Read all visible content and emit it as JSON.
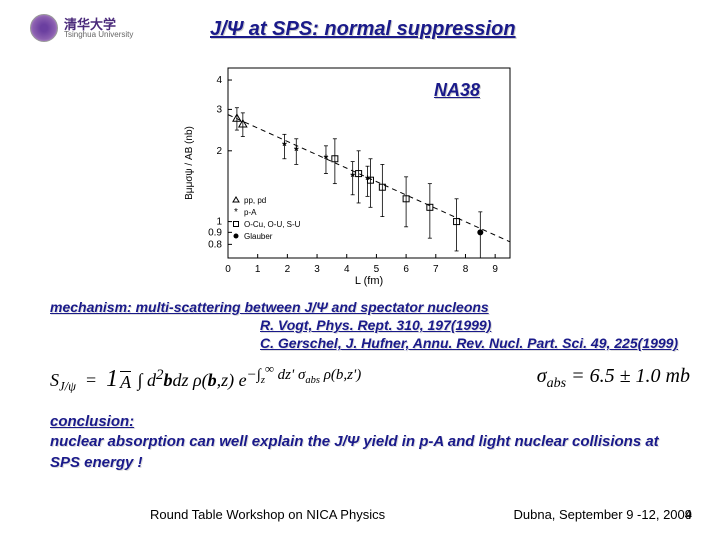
{
  "logo": {
    "cn": "清华大学",
    "en": "Tsinghua University"
  },
  "title": "J/Ψ at SPS:  normal suppression",
  "chart": {
    "label": "NA38",
    "type": "scatter",
    "xlabel": "L (fm)",
    "ylabel": "Bμμσψ / AB (nb)",
    "xlim": [
      0,
      9.5
    ],
    "ylim_log": [
      0.7,
      4.5
    ],
    "xticks": [
      0,
      1,
      2,
      3,
      4,
      5,
      6,
      7,
      8,
      9
    ],
    "yticks": [
      0.8,
      0.9,
      1,
      2,
      3,
      4
    ],
    "yticks_labels": [
      "0.8",
      "0.9",
      "1",
      "2",
      "3",
      "4"
    ],
    "grid_dashed_line": {
      "x": [
        0,
        9.5
      ],
      "y": [
        2.85,
        0.82
      ]
    },
    "legend": [
      {
        "symbol": "triangle-open",
        "label": "pp, pd"
      },
      {
        "symbol": "star",
        "label": "p-A"
      },
      {
        "symbol": "square-open",
        "label": "O-Cu, O-U, S-U"
      },
      {
        "symbol": "circle-filled",
        "label": "Glauber"
      }
    ],
    "points": [
      {
        "x": 0.3,
        "y": 2.75,
        "marker": "triangle-open",
        "err": 0.3
      },
      {
        "x": 0.5,
        "y": 2.6,
        "marker": "triangle-open",
        "err": 0.3
      },
      {
        "x": 1.9,
        "y": 2.1,
        "marker": "star",
        "err": 0.25
      },
      {
        "x": 2.3,
        "y": 2.0,
        "marker": "star",
        "err": 0.25
      },
      {
        "x": 3.3,
        "y": 1.85,
        "marker": "star",
        "err": 0.25
      },
      {
        "x": 4.2,
        "y": 1.55,
        "marker": "star",
        "err": 0.25
      },
      {
        "x": 4.7,
        "y": 1.5,
        "marker": "star",
        "err": 0.22
      },
      {
        "x": 3.6,
        "y": 1.85,
        "marker": "square-open",
        "err": 0.4
      },
      {
        "x": 4.4,
        "y": 1.6,
        "marker": "square-open",
        "err": 0.4
      },
      {
        "x": 4.8,
        "y": 1.5,
        "marker": "square-open",
        "err": 0.35
      },
      {
        "x": 5.2,
        "y": 1.4,
        "marker": "square-open",
        "err": 0.35
      },
      {
        "x": 6.0,
        "y": 1.25,
        "marker": "square-open",
        "err": 0.3
      },
      {
        "x": 6.8,
        "y": 1.15,
        "marker": "square-open",
        "err": 0.3
      },
      {
        "x": 7.7,
        "y": 1.0,
        "marker": "square-open",
        "err": 0.25
      },
      {
        "x": 8.5,
        "y": 0.9,
        "marker": "circle-filled",
        "err": 0.2
      }
    ],
    "colors": {
      "axis": "#000000",
      "dashed": "#000000",
      "background": "#ffffff"
    }
  },
  "mechanism": {
    "line": "mechanism:  multi-scattering between J/Ψ and spectator nucleons",
    "ref1": "R. Vogt, Phys. Rept. 310, 197(1999)",
    "ref2": "C. Gerschel, J. Hufner, Annu. Rev. Nucl. Part. Sci. 49, 225(1999)"
  },
  "formula": {
    "left": "S_{J/ψ} = (1/A) ∫ d²b dz ρ(b,z) e^{−∫_z^∞ dz' σ_{abs} ρ(b,z')}",
    "right": "σ_{abs} = 6.5 ± 1.0 mb"
  },
  "conclusion": {
    "label": "conclusion:",
    "text": "nuclear absorption can well explain the J/Ψ yield in p-A and light nuclear collisions at SPS energy !"
  },
  "footer": {
    "left": "Round Table Workshop on NICA Physics",
    "right": "Dubna, September 9 -12, 2009",
    "page": "4"
  }
}
